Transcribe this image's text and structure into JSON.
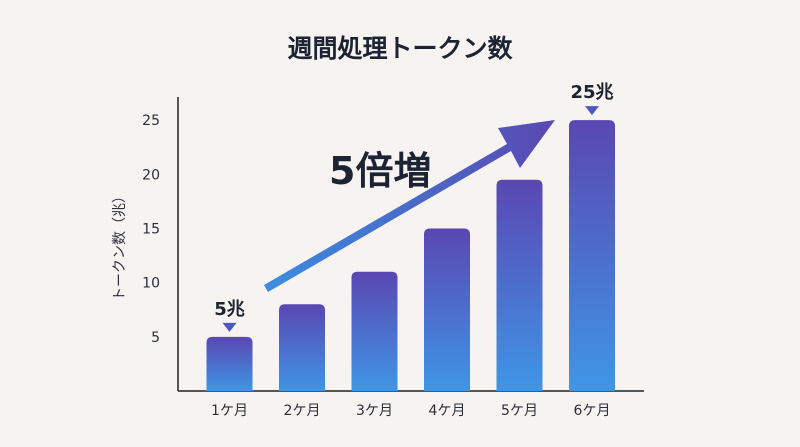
{
  "colors": {
    "background": "#f7f3f1",
    "bar_top": "#5a47b2",
    "bar_bottom": "#3f96e6",
    "marker": "#4d58c2",
    "arrow_start": "#3a8ee0",
    "arrow_end": "#5a47b2",
    "text": "#1c2434"
  },
  "chart_data": {
    "type": "bar",
    "title": "週間処理トークン数",
    "ylabel": "トークン数（兆）",
    "xlabel": "",
    "categories": [
      "1ケ月",
      "2ケ月",
      "3ケ月",
      "4ケ月",
      "5ケ月",
      "6ケ月"
    ],
    "values": [
      5,
      8,
      11,
      15,
      19.5,
      25
    ],
    "ylim": [
      0,
      27.5
    ],
    "yticks": [
      5,
      10,
      15,
      20,
      25
    ],
    "grid": false,
    "annotations": [
      {
        "category": "1ケ月",
        "label": "5兆"
      },
      {
        "category": "6ケ月",
        "label": "25兆"
      }
    ],
    "growth_label": "5倍増"
  }
}
